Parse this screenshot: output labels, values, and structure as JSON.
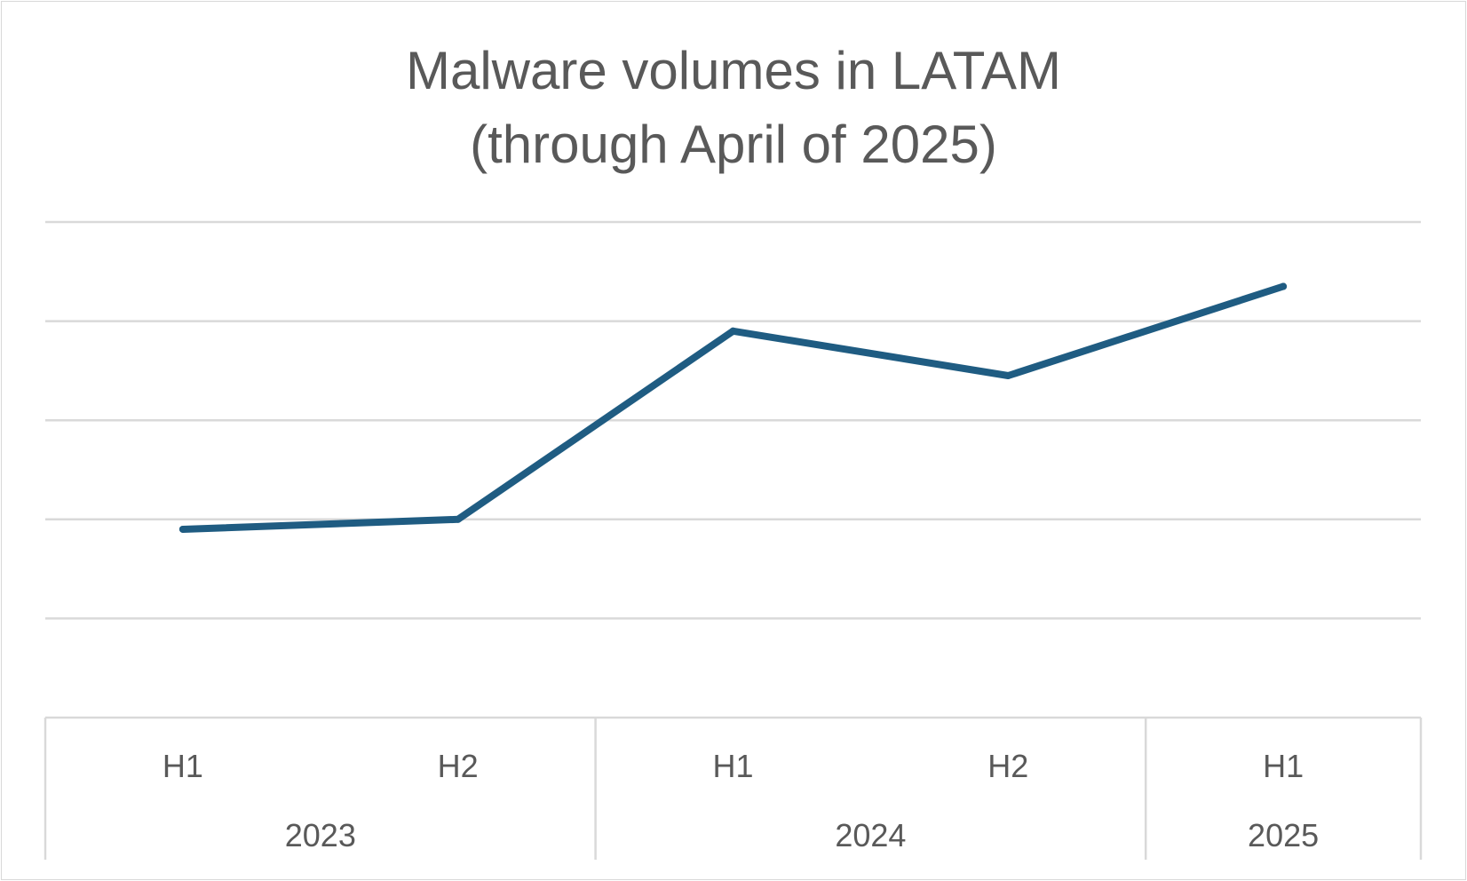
{
  "chart_data": {
    "type": "line",
    "title": "Malware volumes in LATAM",
    "subtitle": "(through April of 2025)",
    "xlabel": "",
    "ylabel": "",
    "x": [
      {
        "half": "H1",
        "year": "2023"
      },
      {
        "half": "H2",
        "year": "2023"
      },
      {
        "half": "H1",
        "year": "2024"
      },
      {
        "half": "H2",
        "year": "2024"
      },
      {
        "half": "H1",
        "year": "2025"
      }
    ],
    "year_groups": [
      {
        "label": "2023",
        "span": 2
      },
      {
        "label": "2024",
        "span": 2
      },
      {
        "label": "2025",
        "span": 1
      }
    ],
    "series": [
      {
        "values": [
          1.9,
          2.0,
          3.9,
          3.45,
          4.35
        ]
      }
    ],
    "ylim": [
      0,
      5
    ],
    "y_gridlines": [
      1,
      2,
      3,
      4,
      5
    ],
    "y_tick_labels_shown": false,
    "grid": true,
    "legend": "none",
    "colors": {
      "line": "#1f5c82",
      "grid": "#d9d9d9",
      "axis": "#d9d9d9",
      "text": "#595959"
    }
  }
}
